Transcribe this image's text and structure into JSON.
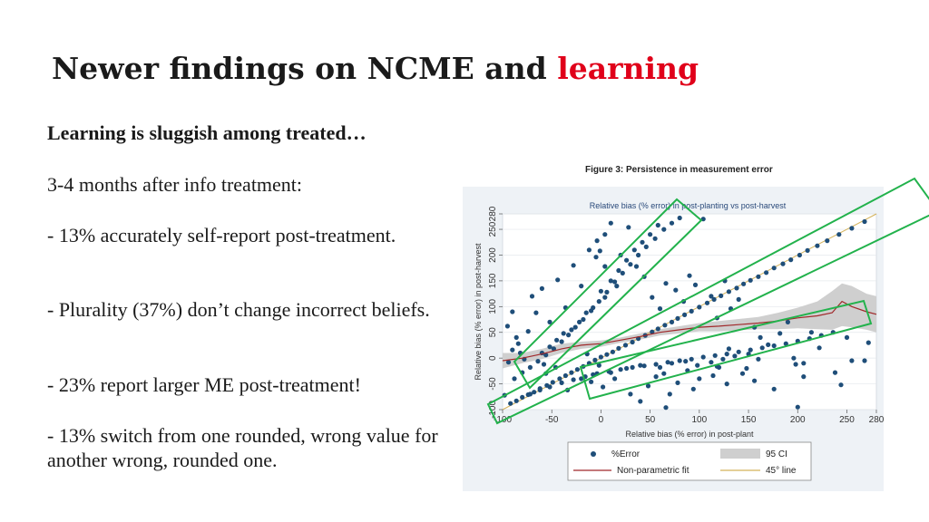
{
  "slide": {
    "title_prefix": "Newer findings on NCME and ",
    "title_highlight": "learning",
    "subtitle": "Learning is sluggish among treated…",
    "paragraphs": [
      "3-4 months after info treatment:",
      "- 13% accurately self-report post-treatment.",
      "- Plurality (37%) don’t change incorrect beliefs.",
      "- 23% report larger ME post-treatment!",
      "- 13% switch from one rounded, wrong value for another wrong, rounded one."
    ],
    "highlight_color": "#e0001a"
  },
  "figure": {
    "caption": "Figure 3: Persistence in measurement error"
  },
  "chart_data": {
    "type": "scatter",
    "title": "Relative bias (% error) in post-planting vs post-harvest",
    "xlabel": "Relative bias (% error) in post-plant",
    "ylabel": "Relative bias (% error) in post-harvest",
    "xlim": [
      -100,
      280
    ],
    "ylim": [
      -100,
      280
    ],
    "xticks": [
      -100,
      -50,
      0,
      50,
      100,
      150,
      200,
      250,
      280
    ],
    "yticks": [
      -100,
      -50,
      0,
      50,
      100,
      150,
      200,
      250,
      280
    ],
    "legend": {
      "position": "bottom",
      "entries": [
        "%Error",
        "95 CI",
        "Non-parametric fit",
        "45° line"
      ]
    },
    "colors": {
      "points": "#1f4e79",
      "fit": "#a0282a",
      "ci": "#cfcfcf",
      "diagonal": "#d4b25a",
      "highlight_box": "#22b24c"
    },
    "series": [
      {
        "name": "%Error",
        "points": [
          [
            -92,
            -88
          ],
          [
            -86,
            -83
          ],
          [
            -80,
            -76
          ],
          [
            -74,
            -71
          ],
          [
            -68,
            -66
          ],
          [
            -62,
            -59
          ],
          [
            -55,
            -53
          ],
          [
            -49,
            -47
          ],
          [
            -42,
            -40
          ],
          [
            -36,
            -34
          ],
          [
            -30,
            -28
          ],
          [
            -24,
            -22
          ],
          [
            -18,
            -16
          ],
          [
            -12,
            -10
          ],
          [
            -6,
            -4
          ],
          [
            0,
            2
          ],
          [
            6,
            7
          ],
          [
            12,
            12
          ],
          [
            18,
            19
          ],
          [
            25,
            25
          ],
          [
            32,
            31
          ],
          [
            38,
            38
          ],
          [
            45,
            44
          ],
          [
            52,
            51
          ],
          [
            58,
            57
          ],
          [
            65,
            64
          ],
          [
            72,
            70
          ],
          [
            78,
            77
          ],
          [
            85,
            84
          ],
          [
            92,
            91
          ],
          [
            100,
            99
          ],
          [
            108,
            107
          ],
          [
            115,
            114
          ],
          [
            122,
            121
          ],
          [
            130,
            129
          ],
          [
            138,
            136
          ],
          [
            145,
            144
          ],
          [
            152,
            151
          ],
          [
            160,
            158
          ],
          [
            168,
            166
          ],
          [
            176,
            175
          ],
          [
            185,
            183
          ],
          [
            193,
            191
          ],
          [
            202,
            200
          ],
          [
            210,
            209
          ],
          [
            220,
            218
          ],
          [
            230,
            228
          ],
          [
            242,
            240
          ],
          [
            255,
            252
          ],
          [
            268,
            265
          ],
          [
            -88,
            -40
          ],
          [
            -80,
            -28
          ],
          [
            -72,
            -18
          ],
          [
            -64,
            -6
          ],
          [
            -56,
            6
          ],
          [
            -48,
            18
          ],
          [
            -40,
            32
          ],
          [
            -33,
            45
          ],
          [
            -26,
            60
          ],
          [
            -18,
            75
          ],
          [
            -10,
            92
          ],
          [
            -2,
            110
          ],
          [
            6,
            128
          ],
          [
            14,
            148
          ],
          [
            22,
            165
          ],
          [
            30,
            182
          ],
          [
            38,
            200
          ],
          [
            46,
            216
          ],
          [
            55,
            232
          ],
          [
            64,
            250
          ],
          [
            72,
            262
          ],
          [
            80,
            272
          ],
          [
            -60,
            10
          ],
          [
            -45,
            35
          ],
          [
            -30,
            55
          ],
          [
            -15,
            88
          ],
          [
            0,
            130
          ],
          [
            10,
            150
          ],
          [
            18,
            170
          ],
          [
            26,
            190
          ],
          [
            34,
            210
          ],
          [
            42,
            225
          ],
          [
            50,
            240
          ],
          [
            58,
            258
          ],
          [
            -52,
            22
          ],
          [
            -38,
            48
          ],
          [
            -22,
            70
          ],
          [
            -8,
            98
          ],
          [
            4,
            118
          ],
          [
            16,
            140
          ],
          [
            -72,
            -70
          ],
          [
            -62,
            -62
          ],
          [
            -52,
            -56
          ],
          [
            -40,
            -48
          ],
          [
            -28,
            -42
          ],
          [
            -16,
            -36
          ],
          [
            -4,
            -30
          ],
          [
            8,
            -26
          ],
          [
            20,
            -22
          ],
          [
            32,
            -18
          ],
          [
            44,
            -15
          ],
          [
            56,
            -12
          ],
          [
            68,
            -8
          ],
          [
            80,
            -5
          ],
          [
            92,
            -2
          ],
          [
            104,
            2
          ],
          [
            116,
            5
          ],
          [
            128,
            8
          ],
          [
            140,
            12
          ],
          [
            152,
            16
          ],
          [
            164,
            20
          ],
          [
            176,
            24
          ],
          [
            188,
            28
          ],
          [
            200,
            33
          ],
          [
            212,
            38
          ],
          [
            224,
            44
          ],
          [
            236,
            50
          ],
          [
            -20,
            -40
          ],
          [
            -8,
            -32
          ],
          [
            10,
            -28
          ],
          [
            26,
            -20
          ],
          [
            40,
            -14
          ],
          [
            60,
            -18
          ],
          [
            72,
            -10
          ],
          [
            86,
            -6
          ],
          [
            98,
            -14
          ],
          [
            112,
            -8
          ],
          [
            124,
            -2
          ],
          [
            136,
            4
          ],
          [
            150,
            8
          ],
          [
            -95,
            62
          ],
          [
            -90,
            90
          ],
          [
            -86,
            40
          ],
          [
            -82,
            10
          ],
          [
            -78,
            -2
          ],
          [
            -70,
            120
          ],
          [
            -60,
            135
          ],
          [
            -52,
            70
          ],
          [
            -44,
            152
          ],
          [
            -36,
            98
          ],
          [
            -28,
            180
          ],
          [
            -20,
            140
          ],
          [
            -12,
            210
          ],
          [
            -4,
            228
          ],
          [
            4,
            240
          ],
          [
            10,
            262
          ],
          [
            20,
            200
          ],
          [
            28,
            254
          ],
          [
            36,
            178
          ],
          [
            44,
            158
          ],
          [
            52,
            118
          ],
          [
            60,
            96
          ],
          [
            66,
            145
          ],
          [
            76,
            132
          ],
          [
            84,
            110
          ],
          [
            90,
            160
          ],
          [
            96,
            142
          ],
          [
            104,
            270
          ],
          [
            112,
            120
          ],
          [
            118,
            78
          ],
          [
            126,
            150
          ],
          [
            132,
            96
          ],
          [
            140,
            114
          ],
          [
            156,
            60
          ],
          [
            162,
            40
          ],
          [
            170,
            26
          ],
          [
            182,
            48
          ],
          [
            190,
            70
          ],
          [
            196,
            0
          ],
          [
            206,
            -10
          ],
          [
            214,
            50
          ],
          [
            222,
            20
          ],
          [
            238,
            -28
          ],
          [
            244,
            -52
          ],
          [
            -58,
            -12
          ],
          [
            -34,
            -62
          ],
          [
            -10,
            -46
          ],
          [
            2,
            -56
          ],
          [
            14,
            -40
          ],
          [
            30,
            -70
          ],
          [
            48,
            -54
          ],
          [
            64,
            -30
          ],
          [
            78,
            -48
          ],
          [
            88,
            -24
          ],
          [
            100,
            -40
          ],
          [
            114,
            -34
          ],
          [
            128,
            -50
          ],
          [
            144,
            -30
          ],
          [
            156,
            -44
          ],
          [
            176,
            -60
          ],
          [
            198,
            -12
          ],
          [
            206,
            -36
          ],
          [
            -98,
            -72
          ],
          [
            -94,
            -8
          ],
          [
            -90,
            16
          ],
          [
            -84,
            28
          ],
          [
            -74,
            52
          ],
          [
            -66,
            88
          ],
          [
            -56,
            -30
          ],
          [
            -46,
            -18
          ],
          [
            250,
            40
          ],
          [
            268,
            -5
          ],
          [
            272,
            30
          ],
          [
            255,
            -5
          ],
          [
            200,
            -95
          ],
          [
            -5,
            196
          ],
          [
            -1,
            208
          ],
          [
            4,
            178
          ],
          [
            160,
            -2
          ],
          [
            148,
            -20
          ],
          [
            130,
            18
          ],
          [
            118,
            -16
          ],
          [
            94,
            -60
          ],
          [
            70,
            -70
          ],
          [
            120,
            -18
          ],
          [
            56,
            -36
          ],
          [
            40,
            -84
          ],
          [
            66,
            -96
          ],
          [
            -14,
            8
          ],
          [
            -2,
            -14
          ]
        ]
      },
      {
        "name": "Non-parametric fit",
        "points": [
          [
            -100,
            -5
          ],
          [
            -80,
            0
          ],
          [
            -60,
            8
          ],
          [
            -40,
            18
          ],
          [
            -20,
            25
          ],
          [
            0,
            28
          ],
          [
            20,
            35
          ],
          [
            40,
            42
          ],
          [
            60,
            50
          ],
          [
            80,
            55
          ],
          [
            100,
            60
          ],
          [
            120,
            62
          ],
          [
            140,
            65
          ],
          [
            160,
            68
          ],
          [
            180,
            72
          ],
          [
            200,
            78
          ],
          [
            220,
            82
          ],
          [
            235,
            88
          ],
          [
            245,
            110
          ],
          [
            255,
            100
          ],
          [
            270,
            90
          ],
          [
            280,
            85
          ]
        ]
      },
      {
        "name": "95 CI",
        "upper": [
          [
            -100,
            10
          ],
          [
            -80,
            10
          ],
          [
            -60,
            18
          ],
          [
            -40,
            28
          ],
          [
            -20,
            32
          ],
          [
            0,
            34
          ],
          [
            20,
            40
          ],
          [
            40,
            48
          ],
          [
            60,
            56
          ],
          [
            80,
            62
          ],
          [
            100,
            68
          ],
          [
            120,
            72
          ],
          [
            140,
            76
          ],
          [
            160,
            80
          ],
          [
            180,
            88
          ],
          [
            200,
            98
          ],
          [
            220,
            110
          ],
          [
            235,
            130
          ],
          [
            245,
            145
          ],
          [
            255,
            140
          ],
          [
            270,
            125
          ],
          [
            280,
            120
          ]
        ],
        "lower": [
          [
            -100,
            -20
          ],
          [
            -80,
            -10
          ],
          [
            -60,
            -2
          ],
          [
            -40,
            10
          ],
          [
            -20,
            18
          ],
          [
            0,
            22
          ],
          [
            20,
            30
          ],
          [
            40,
            36
          ],
          [
            60,
            44
          ],
          [
            80,
            48
          ],
          [
            100,
            52
          ],
          [
            120,
            52
          ],
          [
            140,
            54
          ],
          [
            160,
            56
          ],
          [
            180,
            56
          ],
          [
            200,
            58
          ],
          [
            220,
            56
          ],
          [
            235,
            55
          ],
          [
            245,
            62
          ],
          [
            255,
            60
          ],
          [
            270,
            55
          ],
          [
            280,
            50
          ]
        ]
      },
      {
        "name": "45° line",
        "points": [
          [
            -100,
            -100
          ],
          [
            280,
            280
          ]
        ]
      }
    ]
  }
}
